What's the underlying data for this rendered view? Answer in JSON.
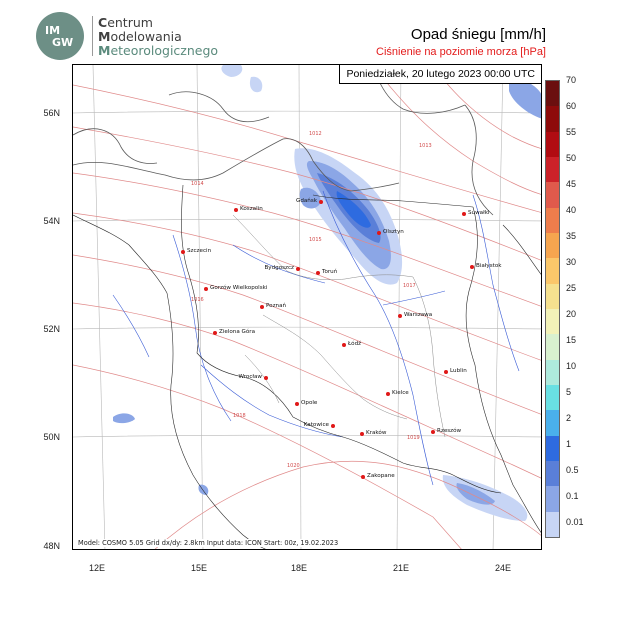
{
  "logo": {
    "badge_line1": "IM",
    "badge_line2": "GW",
    "line1_initial": "C",
    "line1_rest": "entrum",
    "line2_initial": "M",
    "line2_rest": "odelowania",
    "line3_initial": "M",
    "line3_rest": "eteorologicznego"
  },
  "title": "Opad śniegu [mm/h]",
  "subtitle": "Ciśnienie na poziomie morza [hPa]",
  "date": "Poniedziałek, 20 lutego 2023 00:00 UTC",
  "model_info": "Model: COSMO 5.05  Grid dx/dy: 2.8km  Input data: ICON  Start: 00z, 19.02.2023",
  "lat_labels": [
    "56N",
    "54N",
    "52N",
    "50N",
    "48N"
  ],
  "lon_labels": [
    "12E",
    "15E",
    "18E",
    "21E",
    "24E"
  ],
  "legend": {
    "labels": [
      "70",
      "60",
      "55",
      "50",
      "45",
      "40",
      "35",
      "30",
      "25",
      "20",
      "15",
      "10",
      "5",
      "2",
      "1",
      "0.5",
      "0.1",
      "0.01"
    ],
    "colors": [
      "#6b0f0f",
      "#8e0b0b",
      "#b10c12",
      "#cc2229",
      "#e05a4c",
      "#ee7d4c",
      "#f6a54f",
      "#fbc76a",
      "#f6e18f",
      "#f3f2b8",
      "#d9f1cf",
      "#aeeadd",
      "#69e0e3",
      "#4ab0ec",
      "#2e6be0",
      "#5a7fd8",
      "#8ba6e6",
      "#c7d5f5"
    ]
  },
  "cities": [
    {
      "name": "Koszalin"
    },
    {
      "name": "Gdańsk"
    },
    {
      "name": "Szczecin"
    },
    {
      "name": "Olsztyn"
    },
    {
      "name": "Suwałki"
    },
    {
      "name": "Bydgoszcz"
    },
    {
      "name": "Toruń"
    },
    {
      "name": "Białystok"
    },
    {
      "name": "Gorzów Wielkopolski"
    },
    {
      "name": "Poznań"
    },
    {
      "name": "Warszawa"
    },
    {
      "name": "Zielona Góra"
    },
    {
      "name": "Łódź"
    },
    {
      "name": "Lublin"
    },
    {
      "name": "Wrocław"
    },
    {
      "name": "Kielce"
    },
    {
      "name": "Opole"
    },
    {
      "name": "Katowice"
    },
    {
      "name": "Kraków"
    },
    {
      "name": "Rzeszów"
    },
    {
      "name": "Zakopane"
    }
  ],
  "isobar_labels": [
    "1012",
    "1013",
    "1014",
    "1015",
    "1016",
    "1017",
    "1018",
    "1019",
    "1020"
  ]
}
